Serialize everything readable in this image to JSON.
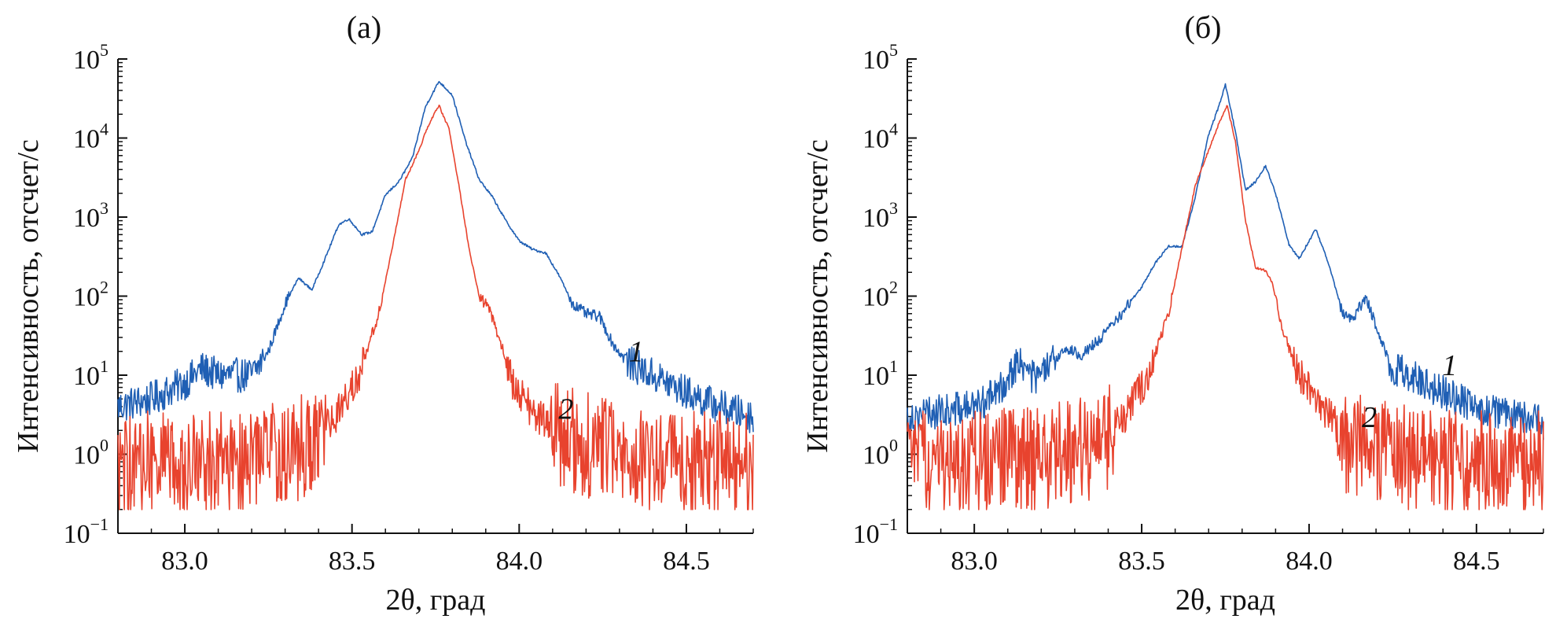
{
  "chart_data": [
    {
      "type": "line",
      "title": "(а)",
      "xlabel": "2θ, град",
      "ylabel": "Интенсивность, отсчет/с",
      "xlim": [
        82.8,
        84.7
      ],
      "ylim_log10": [
        -1,
        5
      ],
      "yscale": "log",
      "x_ticks": [
        83.0,
        83.5,
        84.0,
        84.5
      ],
      "x_tick_labels": [
        "83.0",
        "83.5",
        "84.0",
        "84.5"
      ],
      "y_ticks": [
        {
          "base": "10",
          "exp": "5",
          "value": 100000
        },
        {
          "base": "10",
          "exp": "4",
          "value": 10000
        },
        {
          "base": "10",
          "exp": "3",
          "value": 1000
        },
        {
          "base": "10",
          "exp": "2",
          "value": 100
        },
        {
          "base": "10",
          "exp": "1",
          "value": 10
        },
        {
          "base": "10",
          "exp": "0",
          "value": 1
        },
        {
          "base": "10",
          "exp": "−1",
          "value": 0.1
        }
      ],
      "series": [
        {
          "name": "1",
          "color": "#1f5fb4",
          "x": [
            82.8,
            82.9,
            83.0,
            83.05,
            83.1,
            83.2,
            83.25,
            83.3,
            83.34,
            83.38,
            83.42,
            83.46,
            83.49,
            83.53,
            83.56,
            83.6,
            83.64,
            83.68,
            83.72,
            83.76,
            83.8,
            83.84,
            83.88,
            83.92,
            83.96,
            84.0,
            84.04,
            84.08,
            84.12,
            84.16,
            84.2,
            84.24,
            84.28,
            84.32,
            84.4,
            84.5,
            84.6,
            84.7
          ],
          "values": [
            4,
            5,
            8,
            12,
            10,
            10,
            20,
            80,
            170,
            120,
            300,
            800,
            950,
            600,
            650,
            1900,
            2800,
            5500,
            25000,
            52000,
            35000,
            9000,
            3000,
            1800,
            900,
            500,
            390,
            350,
            180,
            80,
            60,
            55,
            25,
            15,
            10,
            6,
            4,
            3
          ]
        },
        {
          "name": "2",
          "color": "#e8432e",
          "x": [
            82.8,
            83.0,
            83.2,
            83.35,
            83.45,
            83.52,
            83.58,
            83.62,
            83.66,
            83.7,
            83.73,
            83.76,
            83.79,
            83.82,
            83.85,
            83.88,
            83.91,
            83.94,
            83.98,
            84.05,
            84.15,
            84.3,
            84.5,
            84.7
          ],
          "values": [
            1,
            1,
            1.2,
            1.6,
            3,
            10,
            60,
            400,
            3000,
            7000,
            15000,
            26000,
            13000,
            2500,
            400,
            100,
            70,
            30,
            8,
            3,
            2,
            1.3,
            1,
            1
          ]
        }
      ],
      "annotations": [
        {
          "text": "1",
          "x": 84.35,
          "y": 15
        },
        {
          "text": "2",
          "x": 84.14,
          "y": 2.8
        }
      ]
    },
    {
      "type": "line",
      "title": "(б)",
      "xlabel": "2θ, град",
      "ylabel": "Интенсивность, отсчет/с",
      "xlim": [
        82.8,
        84.7
      ],
      "ylim_log10": [
        -1,
        5
      ],
      "yscale": "log",
      "x_ticks": [
        83.0,
        83.5,
        84.0,
        84.5
      ],
      "x_tick_labels": [
        "83.0",
        "83.5",
        "84.0",
        "84.5"
      ],
      "y_ticks": [
        {
          "base": "10",
          "exp": "5",
          "value": 100000
        },
        {
          "base": "10",
          "exp": "4",
          "value": 10000
        },
        {
          "base": "10",
          "exp": "3",
          "value": 1000
        },
        {
          "base": "10",
          "exp": "2",
          "value": 100
        },
        {
          "base": "10",
          "exp": "1",
          "value": 10
        },
        {
          "base": "10",
          "exp": "0",
          "value": 1
        },
        {
          "base": "10",
          "exp": "−1",
          "value": 0.1
        }
      ],
      "series": [
        {
          "name": "1",
          "color": "#1f5fb4",
          "x": [
            82.8,
            82.9,
            83.0,
            83.07,
            83.13,
            83.18,
            83.22,
            83.27,
            83.32,
            83.38,
            83.44,
            83.5,
            83.54,
            83.58,
            83.62,
            83.66,
            83.7,
            83.73,
            83.75,
            83.78,
            83.81,
            83.84,
            83.87,
            83.9,
            83.94,
            83.97,
            84.02,
            84.06,
            84.1,
            84.13,
            84.17,
            84.21,
            84.25,
            84.3,
            84.4,
            84.5,
            84.6,
            84.7
          ],
          "values": [
            3,
            3.5,
            4,
            6,
            15,
            9,
            12,
            22,
            18,
            30,
            60,
            130,
            260,
            430,
            420,
            1800,
            11000,
            25000,
            48000,
            12000,
            2200,
            2800,
            4500,
            2000,
            450,
            300,
            700,
            250,
            60,
            50,
            100,
            30,
            12,
            10,
            6,
            4,
            3,
            2.5
          ]
        },
        {
          "name": "2",
          "color": "#e8432e",
          "x": [
            82.8,
            83.0,
            83.2,
            83.35,
            83.45,
            83.52,
            83.58,
            83.62,
            83.66,
            83.7,
            83.73,
            83.755,
            83.78,
            83.81,
            83.84,
            83.87,
            83.89,
            83.92,
            83.96,
            84.02,
            84.1,
            84.25,
            84.45,
            84.7
          ],
          "values": [
            1,
            1,
            1.2,
            1.6,
            3,
            10,
            60,
            400,
            2500,
            7000,
            15000,
            26000,
            9000,
            900,
            230,
            210,
            150,
            40,
            12,
            5,
            2,
            1.3,
            1,
            1
          ]
        }
      ],
      "annotations": [
        {
          "text": "1",
          "x": 84.42,
          "y": 10
        },
        {
          "text": "2",
          "x": 84.18,
          "y": 2.2
        }
      ]
    }
  ]
}
